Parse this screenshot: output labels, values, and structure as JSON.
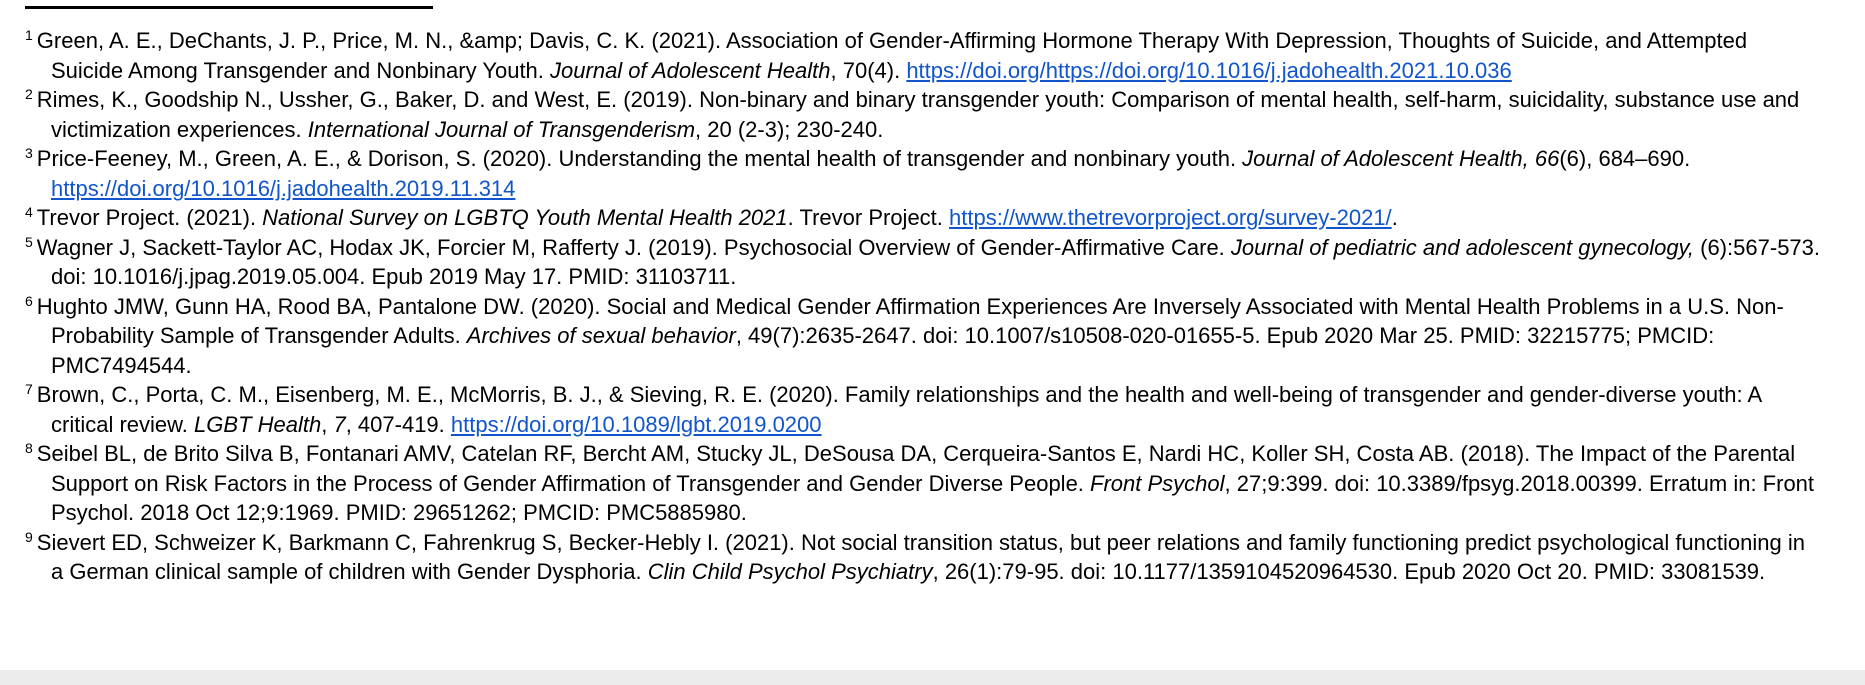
{
  "page": {
    "background_color": "#ffffff",
    "link_color": "#1155cc",
    "bottom_edge_color": "#ececec"
  },
  "footnotes": [
    {
      "number": "1",
      "segments": [
        {
          "style": "normal",
          "text": "Green, A. E., DeChants, J. P., Price, M. N., &amp; Davis, C. K. (2021). Association of Gender-Affirming Hormone Therapy With Depression, Thoughts of Suicide, and Attempted Suicide Among Transgender and Nonbinary Youth. "
        },
        {
          "style": "italic",
          "text": "Journal of Adolescent Health"
        },
        {
          "style": "normal",
          "text": ", 70(4). "
        },
        {
          "style": "link",
          "text": "https://doi.org/https://doi.org/10.1016/j.jadohealth.2021.10.036"
        }
      ]
    },
    {
      "number": "2",
      "segments": [
        {
          "style": "normal",
          "text": "Rimes, K., Goodship N., Ussher, G., Baker, D. and West, E. (2019).  Non-binary and binary transgender youth: Comparison of mental health, self-harm, suicidality, substance use and victimization experiences. "
        },
        {
          "style": "italic",
          "text": "International Journal of Transgenderism"
        },
        {
          "style": "normal",
          "text": ", 20 (2-3); 230-240."
        }
      ]
    },
    {
      "number": "3",
      "segments": [
        {
          "style": "normal",
          "text": "Price-Feeney, M., Green, A. E., & Dorison, S. (2020). Understanding the mental health of transgender and nonbinary youth. "
        },
        {
          "style": "italic",
          "text": "Journal of Adolescent Health, 66"
        },
        {
          "style": "normal",
          "text": "(6), 684–690. "
        },
        {
          "style": "link",
          "text": "https://doi.org/10.1016/j.jadohealth.2019.11.314"
        }
      ]
    },
    {
      "number": "4",
      "segments": [
        {
          "style": "normal",
          "text": "Trevor Project. (2021). "
        },
        {
          "style": "italic",
          "text": "National Survey on LGBTQ Youth Mental Health 2021"
        },
        {
          "style": "normal",
          "text": ". Trevor Project. "
        },
        {
          "style": "link",
          "text": "https://www.thetrevorproject.org/survey-2021/"
        },
        {
          "style": "normal",
          "text": "."
        }
      ]
    },
    {
      "number": "5",
      "segments": [
        {
          "style": "normal",
          "text": "Wagner J, Sackett-Taylor AC, Hodax JK, Forcier M, Rafferty J. (2019). Psychosocial Overview of Gender-Affirmative Care. "
        },
        {
          "style": "italic",
          "text": "Journal of pediatric and adolescent gynecology,"
        },
        {
          "style": "normal",
          "text": " (6):567-573. doi: 10.1016/j.jpag.2019.05.004. Epub 2019 May 17. PMID: 31103711."
        }
      ]
    },
    {
      "number": "6",
      "segments": [
        {
          "style": "normal",
          "text": "Hughto JMW, Gunn HA, Rood BA, Pantalone DW. (2020). Social and Medical Gender Affirmation Experiences Are Inversely Associated with Mental Health Problems in a U.S. Non-Probability Sample of Transgender Adults. "
        },
        {
          "style": "italic",
          "text": "Archives of sexual behavior"
        },
        {
          "style": "normal",
          "text": ", 49(7):2635-2647. doi: 10.1007/s10508-020-01655-5. Epub 2020 Mar 25. PMID: 32215775; PMCID: PMC7494544."
        }
      ]
    },
    {
      "number": "7",
      "segments": [
        {
          "style": "normal",
          "text": "Brown, C., Porta, C. M., Eisenberg, M. E., McMorris, B. J., & Sieving, R. E. (2020). Family relationships and the health and well-being of transgender and gender-diverse youth: A critical review. "
        },
        {
          "style": "italic",
          "text": "LGBT Health"
        },
        {
          "style": "normal",
          "text": ", "
        },
        {
          "style": "italic",
          "text": "7"
        },
        {
          "style": "normal",
          "text": ", 407-419. "
        },
        {
          "style": "link",
          "text": "https://doi.org/10.1089/lgbt.2019.0200"
        }
      ]
    },
    {
      "number": "8",
      "segments": [
        {
          "style": "normal",
          "text": "Seibel BL, de Brito Silva B, Fontanari AMV, Catelan RF, Bercht AM, Stucky JL, DeSousa DA, Cerqueira-Santos E, Nardi HC, Koller SH, Costa AB. (2018). The Impact of the Parental Support on Risk Factors in the Process of Gender Affirmation of Transgender and Gender Diverse People. "
        },
        {
          "style": "italic",
          "text": "Front Psychol"
        },
        {
          "style": "normal",
          "text": ", 27;9:399. doi: 10.3389/fpsyg.2018.00399. Erratum in: Front Psychol. 2018 Oct 12;9:1969. PMID: 29651262; PMCID: PMC5885980."
        }
      ]
    },
    {
      "number": "9",
      "segments": [
        {
          "style": "normal",
          "text": "Sievert ED, Schweizer K, Barkmann C, Fahrenkrug S, Becker-Hebly I. (2021). Not social transition status, but peer relations and family functioning predict psychological functioning in a German clinical sample of children with Gender Dysphoria. "
        },
        {
          "style": "italic",
          "text": "Clin Child Psychol Psychiatry"
        },
        {
          "style": "normal",
          "text": ", 26(1):79-95. doi: 10.1177/1359104520964530. Epub 2020 Oct 20. PMID: 33081539."
        }
      ]
    }
  ]
}
